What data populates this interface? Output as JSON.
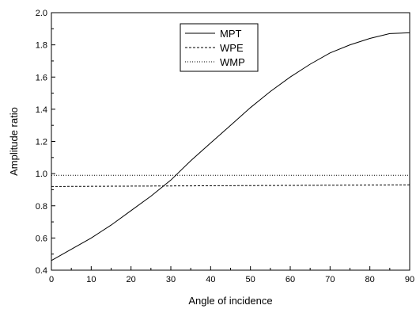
{
  "chart_data": {
    "type": "line",
    "xlabel": "Angle of incidence",
    "ylabel": "Amplitude ratio",
    "xlim": [
      0,
      90
    ],
    "ylim": [
      0.4,
      2.0
    ],
    "xticks": [
      0,
      10,
      20,
      30,
      40,
      50,
      60,
      70,
      80,
      90
    ],
    "yticks": [
      0.4,
      0.6,
      0.8,
      1.0,
      1.2,
      1.4,
      1.6,
      1.8,
      2.0
    ],
    "grid": false,
    "legend_position": "top-center",
    "series": [
      {
        "name": "MPT",
        "style": "solid",
        "color": "#000000",
        "x": [
          0,
          5,
          10,
          15,
          20,
          25,
          30,
          35,
          40,
          45,
          50,
          55,
          60,
          65,
          70,
          75,
          80,
          85,
          90
        ],
        "y": [
          0.46,
          0.53,
          0.6,
          0.68,
          0.77,
          0.86,
          0.96,
          1.08,
          1.19,
          1.3,
          1.41,
          1.51,
          1.6,
          1.68,
          1.75,
          1.8,
          1.84,
          1.87,
          1.875
        ]
      },
      {
        "name": "WPE",
        "style": "dashed",
        "color": "#000000",
        "x": [
          0,
          90
        ],
        "y": [
          0.92,
          0.93
        ]
      },
      {
        "name": "WMP",
        "style": "dotted",
        "color": "#000000",
        "x": [
          0,
          90
        ],
        "y": [
          0.99,
          0.99
        ]
      }
    ]
  }
}
